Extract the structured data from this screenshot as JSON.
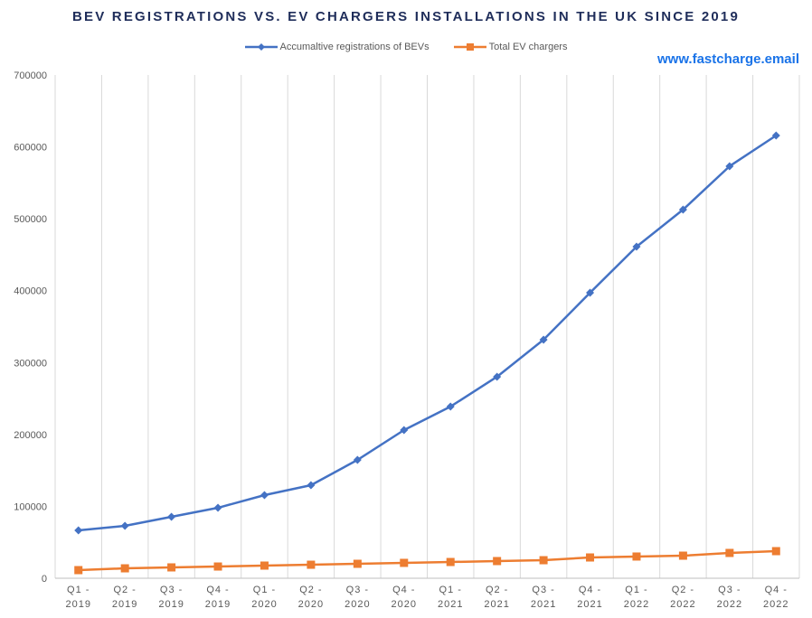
{
  "chart_data": {
    "type": "line",
    "title": "BEV REGISTRATIONS VS. EV CHARGERS INSTALLATIONS IN THE UK SINCE 2019",
    "watermark": "www.fastcharge.email",
    "categories": [
      [
        "Q1 -",
        "2019"
      ],
      [
        "Q2 -",
        "2019"
      ],
      [
        "Q3 -",
        "2019"
      ],
      [
        "Q4 -",
        "2019"
      ],
      [
        "Q1 -",
        "2020"
      ],
      [
        "Q2 -",
        "2020"
      ],
      [
        "Q3 -",
        "2020"
      ],
      [
        "Q4 -",
        "2020"
      ],
      [
        "Q1 -",
        "2021"
      ],
      [
        "Q2 -",
        "2021"
      ],
      [
        "Q3 -",
        "2021"
      ],
      [
        "Q4 -",
        "2021"
      ],
      [
        "Q1 -",
        "2022"
      ],
      [
        "Q2 -",
        "2022"
      ],
      [
        "Q3 -",
        "2022"
      ],
      [
        "Q4 -",
        "2022"
      ]
    ],
    "series": [
      {
        "name": "Accumaltive registrations of BEVs",
        "color": "#4472c4",
        "marker": "diamond",
        "values": [
          66600,
          72900,
          85500,
          98000,
          115600,
          129400,
          164600,
          206100,
          238800,
          280300,
          331800,
          397100,
          461200,
          512700,
          573100,
          615800
        ]
      },
      {
        "name": "Total EV chargers",
        "color": "#ed7d31",
        "marker": "square",
        "values": [
          11300,
          13800,
          15100,
          16300,
          17600,
          18800,
          20100,
          21400,
          22600,
          23900,
          25100,
          28900,
          30200,
          31400,
          35200,
          37700
        ]
      }
    ],
    "ylim": [
      0,
      700000
    ],
    "yticks": [
      "0",
      "100000",
      "200000",
      "300000",
      "400000",
      "500000",
      "600000",
      "700000"
    ],
    "xlabel": "",
    "ylabel": "",
    "legend": "top-center",
    "grid": "vertical"
  }
}
